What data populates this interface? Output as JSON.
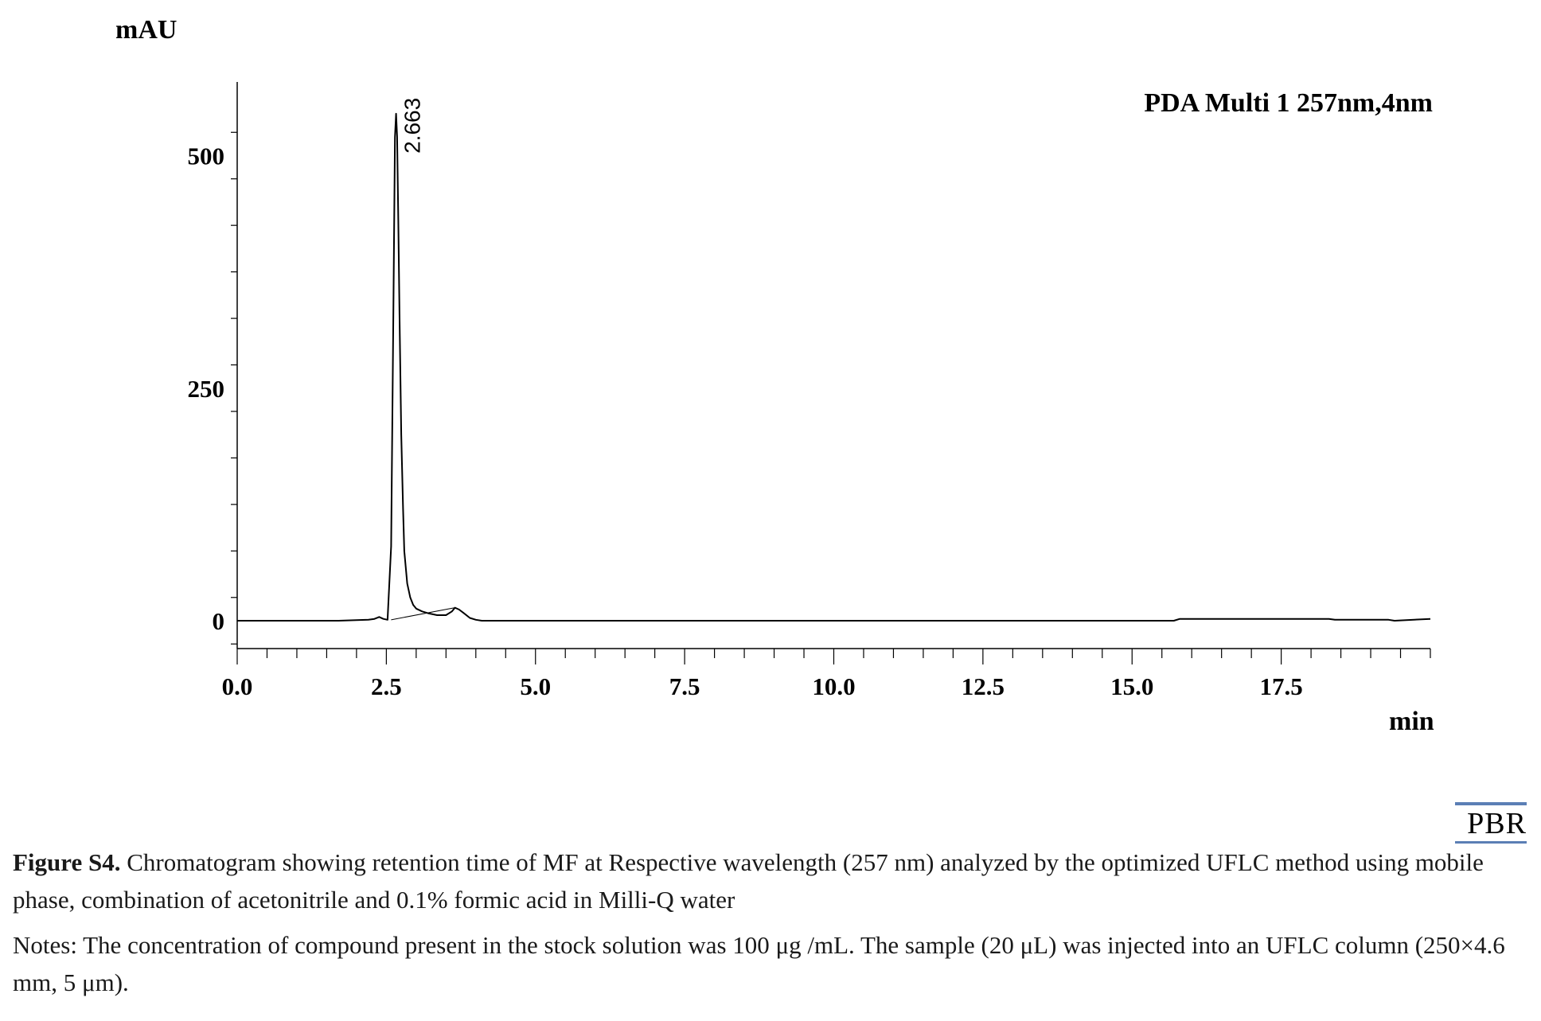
{
  "chart_data": {
    "type": "line",
    "title": "",
    "detector_label": "PDA Multi 1 257nm,4nm",
    "ylabel": "mAU",
    "xlabel": "min",
    "xlim": [
      0,
      20
    ],
    "ylim": [
      -30,
      575
    ],
    "x_ticks": [
      "0.0",
      "2.5",
      "5.0",
      "7.5",
      "10.0",
      "12.5",
      "15.0",
      "17.5"
    ],
    "x_tick_values": [
      0,
      2.5,
      5.0,
      7.5,
      10.0,
      12.5,
      15.0,
      17.5
    ],
    "y_ticks": [
      "0",
      "250",
      "500"
    ],
    "y_tick_values": [
      0,
      250,
      500
    ],
    "series": [
      {
        "x": [
          0,
          1.7,
          2.2,
          2.3,
          2.38,
          2.45,
          2.52,
          2.58,
          2.62,
          2.645,
          2.663,
          2.68,
          2.7,
          2.72,
          2.75,
          2.78,
          2.8,
          2.85,
          2.9,
          2.95,
          3.0,
          3.1,
          3.2,
          3.35,
          3.5,
          3.6,
          3.65,
          3.72,
          3.8,
          3.9,
          4.0,
          4.1,
          6.0,
          10.0,
          15.7,
          15.8,
          17.0,
          18.3,
          18.4,
          19.3,
          19.4,
          20.0
        ],
        "y": [
          0,
          0,
          1,
          2,
          4,
          2,
          1,
          80,
          350,
          520,
          545,
          520,
          430,
          330,
          200,
          120,
          75,
          40,
          25,
          17,
          13,
          10,
          8,
          6,
          6,
          10,
          14,
          12,
          8,
          3,
          1,
          0,
          0,
          0,
          0,
          2,
          2,
          2,
          1,
          1,
          0,
          2
        ]
      }
    ],
    "baseline": {
      "x": [
        2.58,
        3.65
      ],
      "y": [
        1,
        14
      ]
    },
    "annotations": [
      {
        "text": "2.663",
        "x": 2.663,
        "y": 545
      }
    ],
    "grid": false,
    "legend": "none"
  },
  "pbr_logo": "PBR",
  "caption": {
    "label": "Figure S4.",
    "text": " Chromatogram showing retention time of MF at Respective wavelength (257 nm) analyzed by the optimized UFLC method using mobile phase, combination of acetonitrile and 0.1% formic acid in Milli-Q water",
    "notes": "Notes: The concentration of compound present in the stock solution was 100 μg /mL. The sample (20 μL) was injected into an UFLC column (250×4.6 mm, 5 μm)."
  }
}
